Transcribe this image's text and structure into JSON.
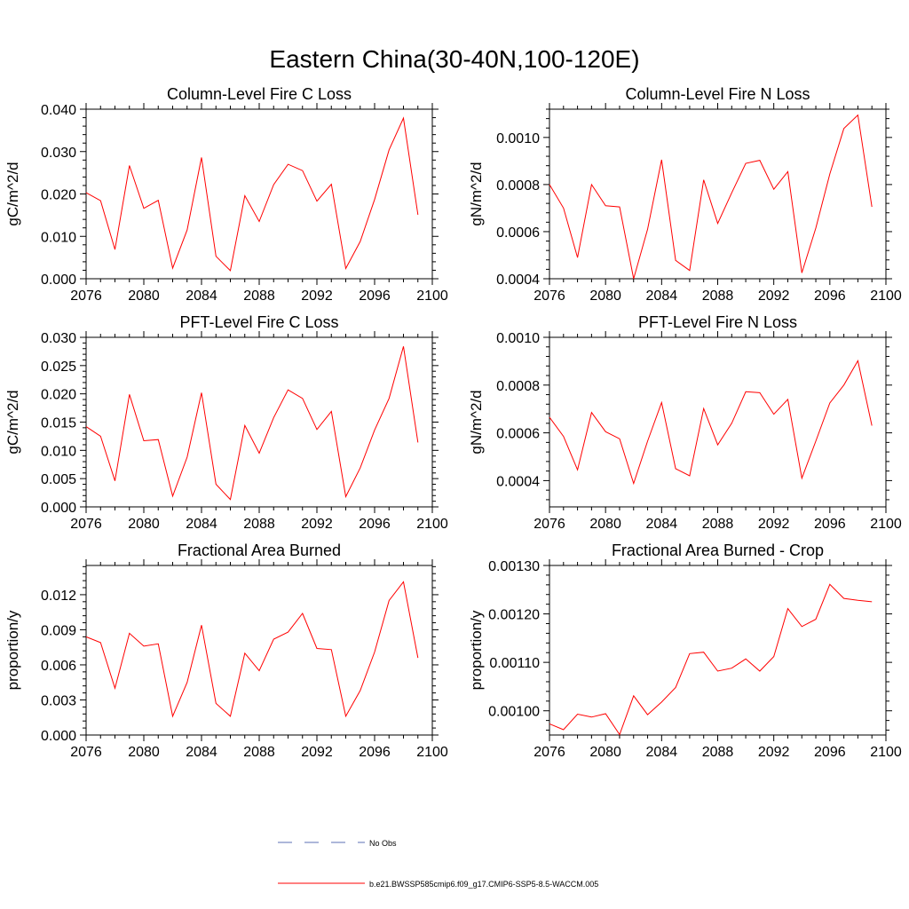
{
  "figure": {
    "title": "Eastern China(30-40N,100-120E)"
  },
  "colors": {
    "model_line": "#ff0000",
    "obs_line": "#5b6fb5",
    "axis": "#000000"
  },
  "legend": {
    "obs_label": "No Obs",
    "model_label": "b.e21.BWSSP585cmip6.f09_g17.CMIP6-SSP5-8.5-WACCM.005"
  },
  "chart_data": [
    {
      "type": "line",
      "title": "Column-Level Fire C Loss",
      "xlabel": "",
      "ylabel": "gC/m^2/d",
      "xlim": [
        2076,
        2100
      ],
      "ylim": [
        0,
        0.04
      ],
      "xticks": [
        2076,
        2080,
        2084,
        2088,
        2092,
        2096,
        2100
      ],
      "yticks": [
        0.0,
        0.01,
        0.02,
        0.03,
        0.04
      ],
      "ytick_labels": [
        "0.000",
        "0.010",
        "0.020",
        "0.030",
        "0.040"
      ],
      "x": [
        2076,
        2077,
        2078,
        2079,
        2080,
        2081,
        2082,
        2083,
        2084,
        2085,
        2086,
        2087,
        2088,
        2089,
        2090,
        2091,
        2092,
        2093,
        2094,
        2095,
        2096,
        2097,
        2098,
        2099
      ],
      "series": [
        {
          "name": "b.e21.BWSSP585cmip6.f09_g17.CMIP6-SSP5-8.5-WACCM.005",
          "values": [
            0.0203,
            0.0184,
            0.0069,
            0.0267,
            0.0166,
            0.0185,
            0.0025,
            0.0115,
            0.0286,
            0.0053,
            0.0019,
            0.0196,
            0.0135,
            0.0222,
            0.027,
            0.0255,
            0.0183,
            0.0223,
            0.0024,
            0.0088,
            0.0187,
            0.0304,
            0.0379,
            0.0151
          ]
        }
      ]
    },
    {
      "type": "line",
      "title": "Column-Level Fire N Loss",
      "xlabel": "",
      "ylabel": "gN/m^2/d",
      "xlim": [
        2076,
        2100
      ],
      "ylim": [
        0.0004,
        0.00112
      ],
      "xticks": [
        2076,
        2080,
        2084,
        2088,
        2092,
        2096,
        2100
      ],
      "yticks": [
        0.0004,
        0.0006,
        0.0008,
        0.001
      ],
      "ytick_labels": [
        "0.0004",
        "0.0006",
        "0.0008",
        "0.0010"
      ],
      "x": [
        2076,
        2077,
        2078,
        2079,
        2080,
        2081,
        2082,
        2083,
        2084,
        2085,
        2086,
        2087,
        2088,
        2089,
        2090,
        2091,
        2092,
        2093,
        2094,
        2095,
        2096,
        2097,
        2098,
        2099
      ],
      "series": [
        {
          "name": "b.e21.BWSSP585cmip6.f09_g17.CMIP6-SSP5-8.5-WACCM.005",
          "values": [
            0.0008,
            0.0007,
            0.00049,
            0.0008,
            0.00071,
            0.000705,
            0.0004,
            0.00061,
            0.000905,
            0.000478,
            0.000435,
            0.00082,
            0.000635,
            0.000765,
            0.00089,
            0.000903,
            0.00078,
            0.000855,
            0.000425,
            0.000615,
            0.000845,
            0.001038,
            0.001095,
            0.000705
          ]
        }
      ]
    },
    {
      "type": "line",
      "title": "PFT-Level Fire C Loss",
      "xlabel": "",
      "ylabel": "gC/m^2/d",
      "xlim": [
        2076,
        2100
      ],
      "ylim": [
        0,
        0.03
      ],
      "xticks": [
        2076,
        2080,
        2084,
        2088,
        2092,
        2096,
        2100
      ],
      "yticks": [
        0.0,
        0.005,
        0.01,
        0.015,
        0.02,
        0.025,
        0.03
      ],
      "ytick_labels": [
        "0.000",
        "0.005",
        "0.010",
        "0.015",
        "0.020",
        "0.025",
        "0.030"
      ],
      "x": [
        2076,
        2077,
        2078,
        2079,
        2080,
        2081,
        2082,
        2083,
        2084,
        2085,
        2086,
        2087,
        2088,
        2089,
        2090,
        2091,
        2092,
        2093,
        2094,
        2095,
        2096,
        2097,
        2098,
        2099
      ],
      "series": [
        {
          "name": "b.e21.BWSSP585cmip6.f09_g17.CMIP6-SSP5-8.5-WACCM.005",
          "values": [
            0.0142,
            0.0125,
            0.0046,
            0.0199,
            0.0117,
            0.0119,
            0.0019,
            0.0088,
            0.0202,
            0.004,
            0.0013,
            0.0144,
            0.0095,
            0.0158,
            0.0207,
            0.0192,
            0.0137,
            0.0169,
            0.0018,
            0.0069,
            0.0136,
            0.0192,
            0.0284,
            0.0114
          ]
        }
      ]
    },
    {
      "type": "line",
      "title": "PFT-Level Fire N Loss",
      "xlabel": "",
      "ylabel": "gN/m^2/d",
      "xlim": [
        2076,
        2100
      ],
      "ylim": [
        0.00029,
        0.001
      ],
      "xticks": [
        2076,
        2080,
        2084,
        2088,
        2092,
        2096,
        2100
      ],
      "yticks": [
        0.0004,
        0.0006,
        0.0008,
        0.001
      ],
      "ytick_labels": [
        "0.0004",
        "0.0006",
        "0.0008",
        "0.0010"
      ],
      "x": [
        2076,
        2077,
        2078,
        2079,
        2080,
        2081,
        2082,
        2083,
        2084,
        2085,
        2086,
        2087,
        2088,
        2089,
        2090,
        2091,
        2092,
        2093,
        2094,
        2095,
        2096,
        2097,
        2098,
        2099
      ],
      "series": [
        {
          "name": "b.e21.BWSSP585cmip6.f09_g17.CMIP6-SSP5-8.5-WACCM.005",
          "values": [
            0.000665,
            0.000585,
            0.000445,
            0.000685,
            0.000605,
            0.000575,
            0.000388,
            0.000565,
            0.000727,
            0.00045,
            0.00042,
            0.000702,
            0.00055,
            0.00064,
            0.000772,
            0.000768,
            0.000678,
            0.00074,
            0.00041,
            0.000565,
            0.000725,
            0.0008,
            0.000902,
            0.00063
          ]
        }
      ]
    },
    {
      "type": "line",
      "title": "Fractional Area Burned",
      "xlabel": "",
      "ylabel": "proportion/y",
      "xlim": [
        2076,
        2100
      ],
      "ylim": [
        0,
        0.0145
      ],
      "xticks": [
        2076,
        2080,
        2084,
        2088,
        2092,
        2096,
        2100
      ],
      "yticks": [
        0.0,
        0.003,
        0.006,
        0.009,
        0.012
      ],
      "ytick_labels": [
        "0.000",
        "0.003",
        "0.006",
        "0.009",
        "0.012"
      ],
      "x": [
        2076,
        2077,
        2078,
        2079,
        2080,
        2081,
        2082,
        2083,
        2084,
        2085,
        2086,
        2087,
        2088,
        2089,
        2090,
        2091,
        2092,
        2093,
        2094,
        2095,
        2096,
        2097,
        2098,
        2099
      ],
      "series": [
        {
          "name": "b.e21.BWSSP585cmip6.f09_g17.CMIP6-SSP5-8.5-WACCM.005",
          "values": [
            0.0084,
            0.0079,
            0.004,
            0.0087,
            0.0076,
            0.0078,
            0.0016,
            0.0045,
            0.0094,
            0.0027,
            0.0016,
            0.007,
            0.0055,
            0.0082,
            0.0088,
            0.0104,
            0.0074,
            0.0073,
            0.0016,
            0.0038,
            0.0071,
            0.0115,
            0.0131,
            0.0066
          ]
        }
      ]
    },
    {
      "type": "line",
      "title": "Fractional Area Burned - Crop",
      "xlabel": "",
      "ylabel": "proportion/y",
      "xlim": [
        2076,
        2100
      ],
      "ylim": [
        0.00095,
        0.0013
      ],
      "xticks": [
        2076,
        2080,
        2084,
        2088,
        2092,
        2096,
        2100
      ],
      "yticks": [
        0.001,
        0.0011,
        0.0012,
        0.0013
      ],
      "ytick_labels": [
        "0.00100",
        "0.00110",
        "0.00120",
        "0.00130"
      ],
      "x": [
        2076,
        2077,
        2078,
        2079,
        2080,
        2081,
        2082,
        2083,
        2084,
        2085,
        2086,
        2087,
        2088,
        2089,
        2090,
        2091,
        2092,
        2093,
        2094,
        2095,
        2096,
        2097,
        2098,
        2099
      ],
      "series": [
        {
          "name": "b.e21.BWSSP585cmip6.f09_g17.CMIP6-SSP5-8.5-WACCM.005",
          "values": [
            0.000973,
            0.000961,
            0.000993,
            0.000987,
            0.000994,
            0.000951,
            0.001031,
            0.000992,
            0.001018,
            0.001048,
            0.001118,
            0.001121,
            0.001082,
            0.001088,
            0.001107,
            0.001082,
            0.001112,
            0.001211,
            0.001174,
            0.001189,
            0.001261,
            0.001232,
            0.001228,
            0.001225
          ]
        }
      ]
    }
  ]
}
